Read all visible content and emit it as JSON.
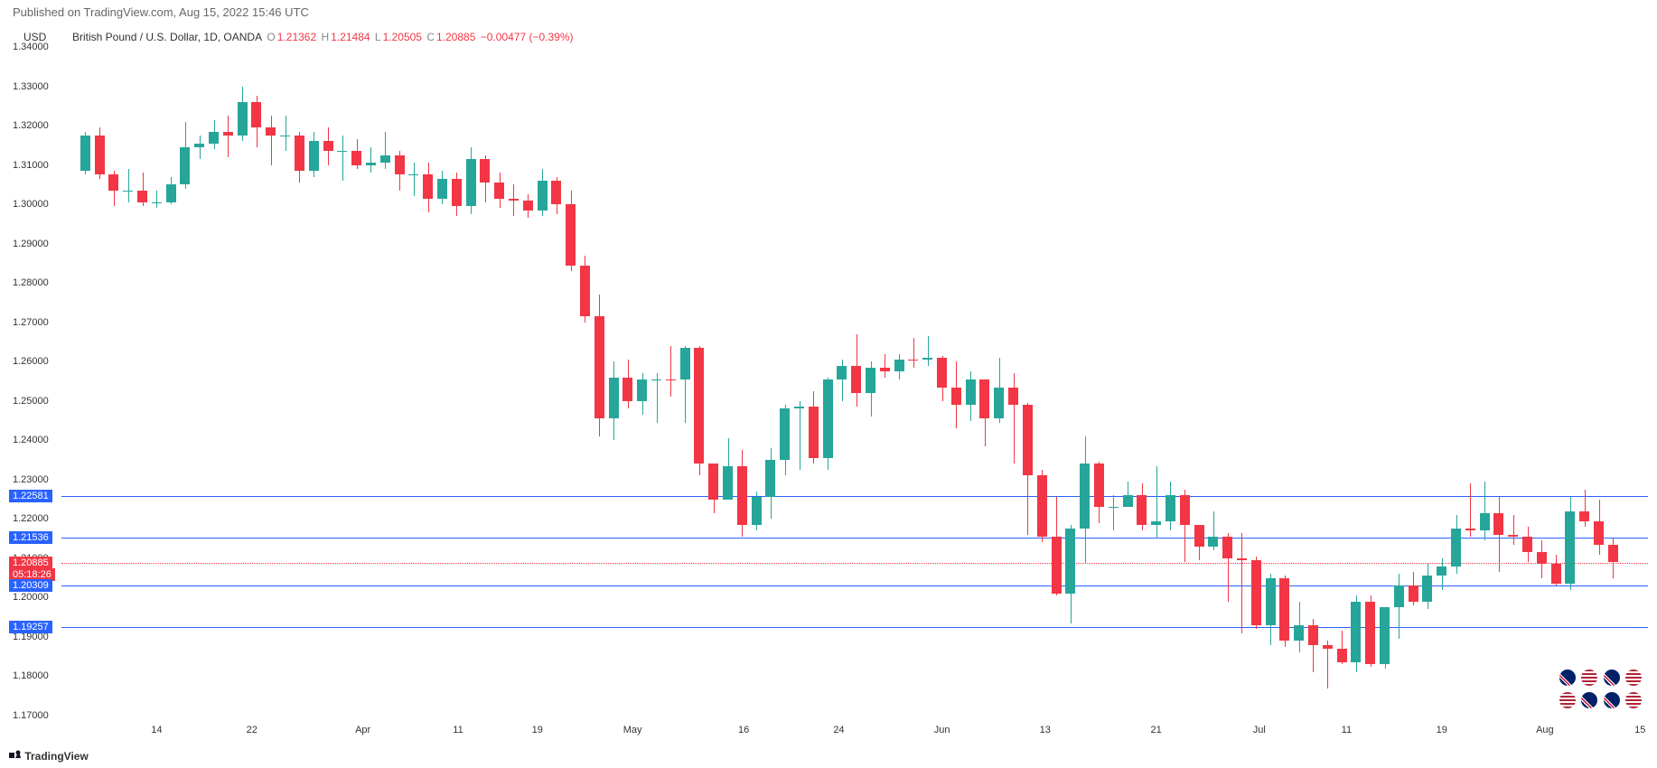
{
  "header": {
    "text": "Published on TradingView.com, Aug 15, 2022 15:46 UTC"
  },
  "axis_label": "USD",
  "info": {
    "symbol": "British Pound / U.S. Dollar, 1D, OANDA",
    "o_label": "O",
    "o": "1.21362",
    "h_label": "H",
    "h": "1.21484",
    "l_label": "L",
    "l": "1.20505",
    "c_label": "C",
    "c": "1.20885",
    "change": "−0.00477 (−0.39%)"
  },
  "chart": {
    "ymin": 1.17,
    "ymax": 1.34,
    "yticks": [
      1.17,
      1.18,
      1.19,
      1.2,
      1.21,
      1.22,
      1.23,
      1.24,
      1.25,
      1.26,
      1.27,
      1.28,
      1.29,
      1.3,
      1.31,
      1.32,
      1.33,
      1.34
    ],
    "xticks": [
      "14",
      "22",
      "Apr",
      "11",
      "19",
      "May",
      "16",
      "24",
      "Jun",
      "13",
      "21",
      "Jul",
      "11",
      "19",
      "Aug",
      "15"
    ],
    "xtick_pos": [
      0.06,
      0.12,
      0.19,
      0.25,
      0.3,
      0.36,
      0.43,
      0.49,
      0.555,
      0.62,
      0.69,
      0.755,
      0.81,
      0.87,
      0.935,
      0.995
    ],
    "colors": {
      "up": "#26a69a",
      "down": "#f23645",
      "bg": "#ffffff",
      "grid": "#e0e3eb",
      "hline": "#2962ff",
      "price_line": "#f23645",
      "countdown_bg": "#f23645"
    },
    "horizontal_lines": [
      {
        "value": 1.22581,
        "label": "1.22581",
        "bg": "#2962ff"
      },
      {
        "value": 1.21536,
        "label": "1.21536",
        "bg": "#2962ff"
      },
      {
        "value": 1.20885,
        "label": "1.20885",
        "bg": "#f23645",
        "dotted": true,
        "extra_label": "05:18:26"
      },
      {
        "value": 1.20309,
        "label": "1.20309",
        "bg": "#2962ff"
      },
      {
        "value": 1.19257,
        "label": "1.19257",
        "bg": "#2962ff"
      }
    ],
    "candle_width": 11,
    "candles": [
      {
        "x": 0.015,
        "o": 1.3085,
        "h": 1.3185,
        "l": 1.3075,
        "c": 1.3175,
        "d": "u"
      },
      {
        "x": 0.024,
        "o": 1.3175,
        "h": 1.3195,
        "l": 1.3065,
        "c": 1.3075,
        "d": "d"
      },
      {
        "x": 0.033,
        "o": 1.3075,
        "h": 1.3085,
        "l": 1.2995,
        "c": 1.3035,
        "d": "d"
      },
      {
        "x": 0.042,
        "o": 1.3035,
        "h": 1.309,
        "l": 1.3005,
        "c": 1.3035,
        "d": "u"
      },
      {
        "x": 0.051,
        "o": 1.3035,
        "h": 1.308,
        "l": 1.2995,
        "c": 1.3005,
        "d": "d"
      },
      {
        "x": 0.06,
        "o": 1.3005,
        "h": 1.3035,
        "l": 1.299,
        "c": 1.3005,
        "d": "u"
      },
      {
        "x": 0.069,
        "o": 1.3005,
        "h": 1.307,
        "l": 1.3,
        "c": 1.305,
        "d": "u"
      },
      {
        "x": 0.078,
        "o": 1.305,
        "h": 1.321,
        "l": 1.304,
        "c": 1.3145,
        "d": "u"
      },
      {
        "x": 0.087,
        "o": 1.3145,
        "h": 1.3175,
        "l": 1.3115,
        "c": 1.3155,
        "d": "u"
      },
      {
        "x": 0.096,
        "o": 1.3155,
        "h": 1.3215,
        "l": 1.314,
        "c": 1.3185,
        "d": "u"
      },
      {
        "x": 0.105,
        "o": 1.3185,
        "h": 1.3225,
        "l": 1.312,
        "c": 1.3175,
        "d": "d"
      },
      {
        "x": 0.114,
        "o": 1.3175,
        "h": 1.33,
        "l": 1.316,
        "c": 1.326,
        "d": "u"
      },
      {
        "x": 0.123,
        "o": 1.326,
        "h": 1.3275,
        "l": 1.3145,
        "c": 1.3195,
        "d": "d"
      },
      {
        "x": 0.132,
        "o": 1.3195,
        "h": 1.3225,
        "l": 1.31,
        "c": 1.3175,
        "d": "d"
      },
      {
        "x": 0.141,
        "o": 1.3175,
        "h": 1.3225,
        "l": 1.3135,
        "c": 1.3175,
        "d": "u"
      },
      {
        "x": 0.15,
        "o": 1.3175,
        "h": 1.3185,
        "l": 1.3055,
        "c": 1.3085,
        "d": "d"
      },
      {
        "x": 0.159,
        "o": 1.3085,
        "h": 1.3185,
        "l": 1.307,
        "c": 1.316,
        "d": "u"
      },
      {
        "x": 0.168,
        "o": 1.316,
        "h": 1.3195,
        "l": 1.31,
        "c": 1.3135,
        "d": "d"
      },
      {
        "x": 0.177,
        "o": 1.3135,
        "h": 1.3175,
        "l": 1.306,
        "c": 1.3135,
        "d": "u"
      },
      {
        "x": 0.186,
        "o": 1.3135,
        "h": 1.3165,
        "l": 1.309,
        "c": 1.31,
        "d": "d"
      },
      {
        "x": 0.195,
        "o": 1.31,
        "h": 1.3145,
        "l": 1.308,
        "c": 1.3105,
        "d": "u"
      },
      {
        "x": 0.204,
        "o": 1.3105,
        "h": 1.3185,
        "l": 1.309,
        "c": 1.3125,
        "d": "u"
      },
      {
        "x": 0.213,
        "o": 1.3125,
        "h": 1.3135,
        "l": 1.3035,
        "c": 1.3075,
        "d": "d"
      },
      {
        "x": 0.222,
        "o": 1.3075,
        "h": 1.3105,
        "l": 1.302,
        "c": 1.3075,
        "d": "u"
      },
      {
        "x": 0.231,
        "o": 1.3075,
        "h": 1.3105,
        "l": 1.298,
        "c": 1.3015,
        "d": "d"
      },
      {
        "x": 0.24,
        "o": 1.3015,
        "h": 1.3085,
        "l": 1.3,
        "c": 1.3065,
        "d": "u"
      },
      {
        "x": 0.249,
        "o": 1.3065,
        "h": 1.308,
        "l": 1.297,
        "c": 1.2995,
        "d": "d"
      },
      {
        "x": 0.258,
        "o": 1.2995,
        "h": 1.3145,
        "l": 1.2975,
        "c": 1.3115,
        "d": "u"
      },
      {
        "x": 0.267,
        "o": 1.3115,
        "h": 1.3125,
        "l": 1.3005,
        "c": 1.3055,
        "d": "d"
      },
      {
        "x": 0.276,
        "o": 1.3055,
        "h": 1.308,
        "l": 1.299,
        "c": 1.3015,
        "d": "d"
      },
      {
        "x": 0.285,
        "o": 1.3015,
        "h": 1.305,
        "l": 1.297,
        "c": 1.301,
        "d": "d"
      },
      {
        "x": 0.294,
        "o": 1.301,
        "h": 1.3025,
        "l": 1.2965,
        "c": 1.2985,
        "d": "d"
      },
      {
        "x": 0.303,
        "o": 1.2985,
        "h": 1.309,
        "l": 1.297,
        "c": 1.306,
        "d": "u"
      },
      {
        "x": 0.312,
        "o": 1.306,
        "h": 1.307,
        "l": 1.2975,
        "c": 1.3,
        "d": "d"
      },
      {
        "x": 0.321,
        "o": 1.3,
        "h": 1.3035,
        "l": 1.283,
        "c": 1.2845,
        "d": "d"
      },
      {
        "x": 0.33,
        "o": 1.2845,
        "h": 1.287,
        "l": 1.27,
        "c": 1.2715,
        "d": "d"
      },
      {
        "x": 0.339,
        "o": 1.2715,
        "h": 1.277,
        "l": 1.241,
        "c": 1.2455,
        "d": "d"
      },
      {
        "x": 0.348,
        "o": 1.2455,
        "h": 1.26,
        "l": 1.24,
        "c": 1.256,
        "d": "u"
      },
      {
        "x": 0.357,
        "o": 1.256,
        "h": 1.2605,
        "l": 1.248,
        "c": 1.25,
        "d": "d"
      },
      {
        "x": 0.366,
        "o": 1.25,
        "h": 1.257,
        "l": 1.2465,
        "c": 1.2555,
        "d": "u"
      },
      {
        "x": 0.375,
        "o": 1.2555,
        "h": 1.257,
        "l": 1.2445,
        "c": 1.2555,
        "d": "u"
      },
      {
        "x": 0.384,
        "o": 1.2555,
        "h": 1.264,
        "l": 1.251,
        "c": 1.2555,
        "d": "d"
      },
      {
        "x": 0.393,
        "o": 1.2555,
        "h": 1.264,
        "l": 1.2445,
        "c": 1.2635,
        "d": "u"
      },
      {
        "x": 0.402,
        "o": 1.2635,
        "h": 1.264,
        "l": 1.231,
        "c": 1.234,
        "d": "d"
      },
      {
        "x": 0.411,
        "o": 1.234,
        "h": 1.234,
        "l": 1.2215,
        "c": 1.225,
        "d": "d"
      },
      {
        "x": 0.42,
        "o": 1.225,
        "h": 1.2405,
        "l": 1.225,
        "c": 1.2335,
        "d": "u"
      },
      {
        "x": 0.429,
        "o": 1.2335,
        "h": 1.2375,
        "l": 1.2155,
        "c": 1.2185,
        "d": "d"
      },
      {
        "x": 0.438,
        "o": 1.2185,
        "h": 1.227,
        "l": 1.217,
        "c": 1.2255,
        "d": "u"
      },
      {
        "x": 0.447,
        "o": 1.2255,
        "h": 1.238,
        "l": 1.22,
        "c": 1.235,
        "d": "u"
      },
      {
        "x": 0.456,
        "o": 1.235,
        "h": 1.249,
        "l": 1.231,
        "c": 1.248,
        "d": "u"
      },
      {
        "x": 0.465,
        "o": 1.248,
        "h": 1.25,
        "l": 1.2325,
        "c": 1.2485,
        "d": "u"
      },
      {
        "x": 0.474,
        "o": 1.2485,
        "h": 1.2525,
        "l": 1.234,
        "c": 1.2355,
        "d": "d"
      },
      {
        "x": 0.483,
        "o": 1.2355,
        "h": 1.256,
        "l": 1.2325,
        "c": 1.2555,
        "d": "u"
      },
      {
        "x": 0.492,
        "o": 1.2555,
        "h": 1.2605,
        "l": 1.25,
        "c": 1.259,
        "d": "u"
      },
      {
        "x": 0.501,
        "o": 1.259,
        "h": 1.267,
        "l": 1.2485,
        "c": 1.252,
        "d": "d"
      },
      {
        "x": 0.51,
        "o": 1.252,
        "h": 1.26,
        "l": 1.246,
        "c": 1.2585,
        "d": "u"
      },
      {
        "x": 0.519,
        "o": 1.2585,
        "h": 1.262,
        "l": 1.256,
        "c": 1.2575,
        "d": "d"
      },
      {
        "x": 0.528,
        "o": 1.2575,
        "h": 1.262,
        "l": 1.2555,
        "c": 1.2605,
        "d": "u"
      },
      {
        "x": 0.537,
        "o": 1.2605,
        "h": 1.266,
        "l": 1.2585,
        "c": 1.2605,
        "d": "d"
      },
      {
        "x": 0.546,
        "o": 1.2605,
        "h": 1.2665,
        "l": 1.259,
        "c": 1.261,
        "d": "u"
      },
      {
        "x": 0.555,
        "o": 1.261,
        "h": 1.2615,
        "l": 1.25,
        "c": 1.2535,
        "d": "d"
      },
      {
        "x": 0.564,
        "o": 1.2535,
        "h": 1.26,
        "l": 1.243,
        "c": 1.249,
        "d": "d"
      },
      {
        "x": 0.573,
        "o": 1.249,
        "h": 1.2575,
        "l": 1.245,
        "c": 1.2555,
        "d": "u"
      },
      {
        "x": 0.582,
        "o": 1.2555,
        "h": 1.2555,
        "l": 1.2385,
        "c": 1.2455,
        "d": "d"
      },
      {
        "x": 0.591,
        "o": 1.2455,
        "h": 1.261,
        "l": 1.2445,
        "c": 1.2535,
        "d": "u"
      },
      {
        "x": 0.6,
        "o": 1.2535,
        "h": 1.257,
        "l": 1.234,
        "c": 1.249,
        "d": "d"
      },
      {
        "x": 0.609,
        "o": 1.249,
        "h": 1.2495,
        "l": 1.216,
        "c": 1.231,
        "d": "d"
      },
      {
        "x": 0.618,
        "o": 1.231,
        "h": 1.2325,
        "l": 1.214,
        "c": 1.2155,
        "d": "d"
      },
      {
        "x": 0.627,
        "o": 1.2155,
        "h": 1.2255,
        "l": 1.2005,
        "c": 1.201,
        "d": "d"
      },
      {
        "x": 0.636,
        "o": 1.201,
        "h": 1.2185,
        "l": 1.1935,
        "c": 1.2175,
        "d": "u"
      },
      {
        "x": 0.645,
        "o": 1.2175,
        "h": 1.241,
        "l": 1.2085,
        "c": 1.234,
        "d": "u"
      },
      {
        "x": 0.654,
        "o": 1.234,
        "h": 1.2345,
        "l": 1.219,
        "c": 1.223,
        "d": "d"
      },
      {
        "x": 0.663,
        "o": 1.223,
        "h": 1.226,
        "l": 1.217,
        "c": 1.223,
        "d": "u"
      },
      {
        "x": 0.672,
        "o": 1.223,
        "h": 1.2295,
        "l": 1.224,
        "c": 1.226,
        "d": "u"
      },
      {
        "x": 0.681,
        "o": 1.226,
        "h": 1.229,
        "l": 1.217,
        "c": 1.2185,
        "d": "d"
      },
      {
        "x": 0.69,
        "o": 1.2185,
        "h": 1.2335,
        "l": 1.215,
        "c": 1.2195,
        "d": "u"
      },
      {
        "x": 0.699,
        "o": 1.2195,
        "h": 1.2295,
        "l": 1.217,
        "c": 1.226,
        "d": "u"
      },
      {
        "x": 0.708,
        "o": 1.226,
        "h": 1.2275,
        "l": 1.209,
        "c": 1.2185,
        "d": "d"
      },
      {
        "x": 0.717,
        "o": 1.2185,
        "h": 1.2185,
        "l": 1.2095,
        "c": 1.213,
        "d": "d"
      },
      {
        "x": 0.726,
        "o": 1.213,
        "h": 1.222,
        "l": 1.212,
        "c": 1.2155,
        "d": "u"
      },
      {
        "x": 0.735,
        "o": 1.2155,
        "h": 1.2165,
        "l": 1.199,
        "c": 1.21,
        "d": "d"
      },
      {
        "x": 0.744,
        "o": 1.21,
        "h": 1.2165,
        "l": 1.191,
        "c": 1.2095,
        "d": "d"
      },
      {
        "x": 0.753,
        "o": 1.2095,
        "h": 1.2105,
        "l": 1.192,
        "c": 1.193,
        "d": "d"
      },
      {
        "x": 0.762,
        "o": 1.193,
        "h": 1.206,
        "l": 1.188,
        "c": 1.205,
        "d": "u"
      },
      {
        "x": 0.771,
        "o": 1.205,
        "h": 1.2055,
        "l": 1.1875,
        "c": 1.189,
        "d": "d"
      },
      {
        "x": 0.78,
        "o": 1.189,
        "h": 1.199,
        "l": 1.186,
        "c": 1.193,
        "d": "u"
      },
      {
        "x": 0.789,
        "o": 1.193,
        "h": 1.1945,
        "l": 1.181,
        "c": 1.188,
        "d": "d"
      },
      {
        "x": 0.798,
        "o": 1.188,
        "h": 1.189,
        "l": 1.177,
        "c": 1.187,
        "d": "d"
      },
      {
        "x": 0.807,
        "o": 1.187,
        "h": 1.1915,
        "l": 1.183,
        "c": 1.1835,
        "d": "d"
      },
      {
        "x": 0.816,
        "o": 1.1835,
        "h": 1.2005,
        "l": 1.181,
        "c": 1.199,
        "d": "u"
      },
      {
        "x": 0.825,
        "o": 1.199,
        "h": 1.2005,
        "l": 1.1825,
        "c": 1.183,
        "d": "d"
      },
      {
        "x": 0.834,
        "o": 1.183,
        "h": 1.1975,
        "l": 1.182,
        "c": 1.1975,
        "d": "u"
      },
      {
        "x": 0.843,
        "o": 1.1975,
        "h": 1.206,
        "l": 1.1895,
        "c": 1.203,
        "d": "u"
      },
      {
        "x": 0.852,
        "o": 1.203,
        "h": 1.2065,
        "l": 1.198,
        "c": 1.199,
        "d": "d"
      },
      {
        "x": 0.861,
        "o": 1.199,
        "h": 1.2085,
        "l": 1.197,
        "c": 1.2055,
        "d": "u"
      },
      {
        "x": 0.87,
        "o": 1.2055,
        "h": 1.21,
        "l": 1.202,
        "c": 1.208,
        "d": "u"
      },
      {
        "x": 0.879,
        "o": 1.208,
        "h": 1.221,
        "l": 1.206,
        "c": 1.2175,
        "d": "u"
      },
      {
        "x": 0.888,
        "o": 1.2175,
        "h": 1.229,
        "l": 1.2155,
        "c": 1.217,
        "d": "d"
      },
      {
        "x": 0.897,
        "o": 1.217,
        "h": 1.2295,
        "l": 1.2145,
        "c": 1.2215,
        "d": "u"
      },
      {
        "x": 0.906,
        "o": 1.2215,
        "h": 1.2255,
        "l": 1.2065,
        "c": 1.216,
        "d": "d"
      },
      {
        "x": 0.915,
        "o": 1.216,
        "h": 1.221,
        "l": 1.2135,
        "c": 1.2155,
        "d": "d"
      },
      {
        "x": 0.924,
        "o": 1.2155,
        "h": 1.218,
        "l": 1.209,
        "c": 1.2115,
        "d": "d"
      },
      {
        "x": 0.933,
        "o": 1.2115,
        "h": 1.2145,
        "l": 1.205,
        "c": 1.2085,
        "d": "d"
      },
      {
        "x": 0.942,
        "o": 1.2085,
        "h": 1.211,
        "l": 1.203,
        "c": 1.2035,
        "d": "d"
      },
      {
        "x": 0.951,
        "o": 1.2035,
        "h": 1.2255,
        "l": 1.202,
        "c": 1.222,
        "d": "u"
      },
      {
        "x": 0.96,
        "o": 1.222,
        "h": 1.2275,
        "l": 1.218,
        "c": 1.2195,
        "d": "d"
      },
      {
        "x": 0.969,
        "o": 1.2195,
        "h": 1.225,
        "l": 1.211,
        "c": 1.2135,
        "d": "d"
      },
      {
        "x": 0.978,
        "o": 1.2135,
        "h": 1.215,
        "l": 1.205,
        "c": 1.209,
        "d": "d"
      }
    ]
  },
  "logo": "TradingView",
  "flags": {
    "uk": "#012169",
    "uk_red": "#C8102E",
    "us": "#B22234",
    "us_blue": "#3C3B6E"
  }
}
